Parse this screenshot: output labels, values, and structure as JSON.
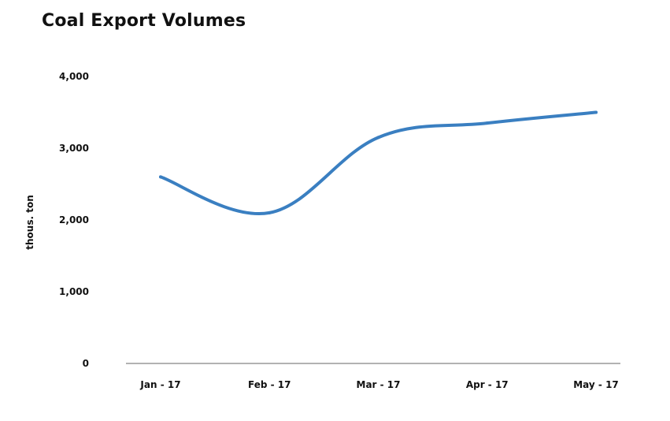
{
  "chart_data": {
    "type": "line",
    "title": "Coal Export Volumes",
    "xlabel": "",
    "ylabel": "thous. ton",
    "categories": [
      "Jan - 17",
      "Feb - 17",
      "Mar - 17",
      "Apr - 17",
      "May - 17"
    ],
    "series": [
      {
        "values": [
          2600,
          2100,
          3150,
          3350,
          3500
        ]
      }
    ],
    "ylim": [
      0,
      4000
    ],
    "yticks": [
      0,
      1000,
      2000,
      3000,
      4000
    ],
    "ytick_labels": [
      "0",
      "1,000",
      "2,000",
      "3,000",
      "4,000"
    ],
    "grid": false,
    "legend": "none",
    "line_color": "#3a7fc1",
    "axis_color": "#999999"
  }
}
